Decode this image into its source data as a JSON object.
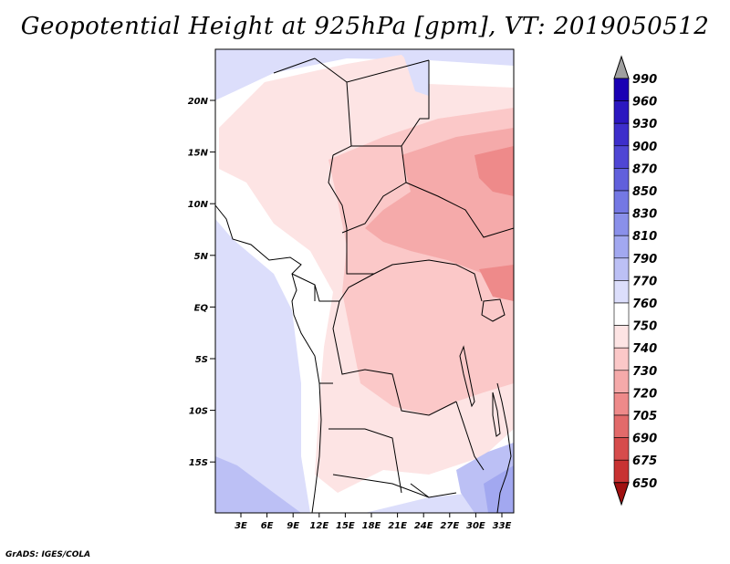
{
  "title": "Geopotential Height at 925hPa [gpm], VT: 2019050512",
  "credit": "GrADS: IGES/COLA",
  "map": {
    "variable": "Geopotential Height",
    "level": "925hPa",
    "units": "gpm",
    "valid_time": "2019050512",
    "lat_ticks": [
      "20N",
      "15N",
      "10N",
      "5N",
      "EQ",
      "5S",
      "10S",
      "15S"
    ],
    "lon_ticks": [
      "3E",
      "6E",
      "9E",
      "12E",
      "15E",
      "18E",
      "21E",
      "24E",
      "27E",
      "30E",
      "33E"
    ]
  },
  "colorbar": {
    "labels": [
      "990",
      "960",
      "930",
      "900",
      "870",
      "850",
      "830",
      "810",
      "790",
      "770",
      "760",
      "750",
      "740",
      "730",
      "720",
      "705",
      "690",
      "675",
      "650"
    ],
    "colors": [
      "#1a00b4",
      "#2b17c0",
      "#3d2ecb",
      "#4f46d4",
      "#6160dc",
      "#7478e4",
      "#8a90ea",
      "#a2a8f0",
      "#bcc0f5",
      "#dcdefb",
      "#ffffff",
      "#fde4e4",
      "#fbc8c8",
      "#f5aaaa",
      "#ee8a8a",
      "#e26a6a",
      "#d64c4c",
      "#c83232",
      "#b41818"
    ],
    "top_arrow_color": "#a0a0a0",
    "bottom_arrow_color": "#a01010"
  }
}
